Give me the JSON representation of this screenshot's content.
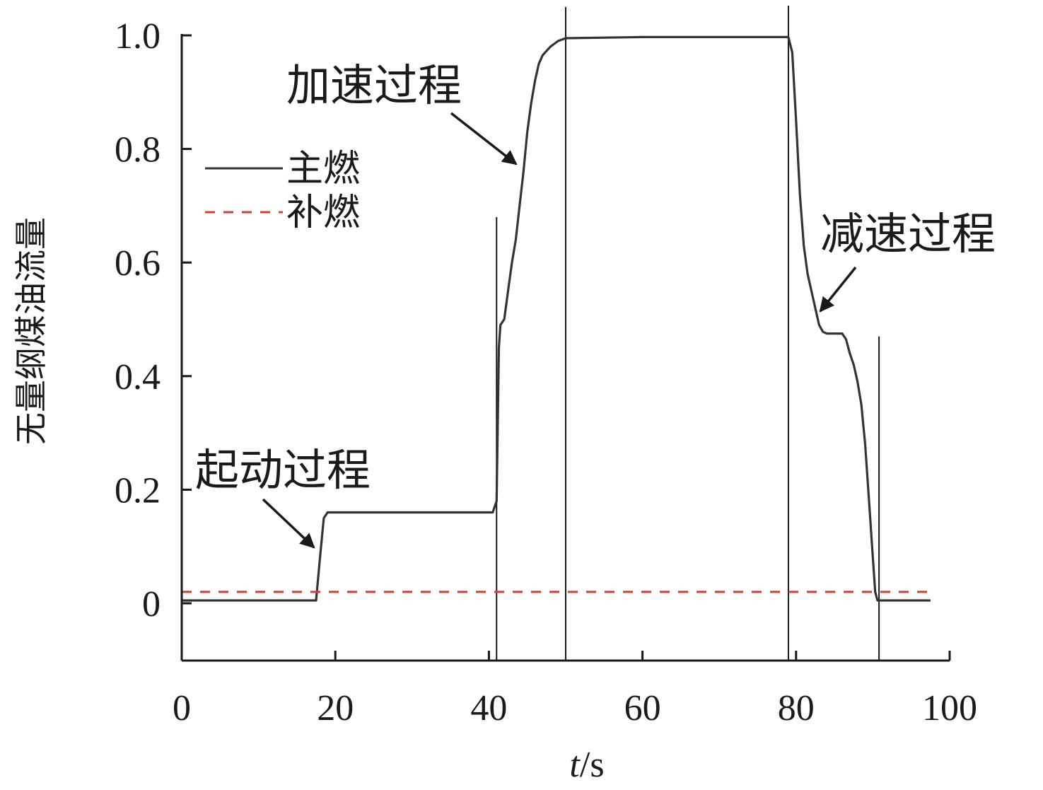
{
  "chart_data": {
    "type": "line",
    "xlabel": "t/s",
    "xlabel_var": "t",
    "xlabel_unit": "/s",
    "ylabel": "无量纲煤油流量",
    "xlim": [
      0,
      100
    ],
    "ylim": [
      -0.1,
      1.0
    ],
    "xticks": [
      "0",
      "20",
      "40",
      "60",
      "80",
      "100"
    ],
    "yticks": [
      "0",
      "0.2",
      "0.4",
      "0.6",
      "0.8",
      "1.0"
    ],
    "series": [
      {
        "name": "主燃",
        "color": "#333333",
        "style": "solid",
        "points": [
          [
            0,
            0.005
          ],
          [
            17.5,
            0.005
          ],
          [
            18.0,
            0.08
          ],
          [
            18.5,
            0.15
          ],
          [
            19.0,
            0.16
          ],
          [
            30,
            0.16
          ],
          [
            40.5,
            0.16
          ],
          [
            41.0,
            0.18
          ],
          [
            41.3,
            0.45
          ],
          [
            41.5,
            0.49
          ],
          [
            42.0,
            0.5
          ],
          [
            42.5,
            0.55
          ],
          [
            43.0,
            0.6
          ],
          [
            43.5,
            0.64
          ],
          [
            44.0,
            0.7
          ],
          [
            44.5,
            0.76
          ],
          [
            45.0,
            0.83
          ],
          [
            45.5,
            0.88
          ],
          [
            46.0,
            0.92
          ],
          [
            46.5,
            0.95
          ],
          [
            47.0,
            0.965
          ],
          [
            48.0,
            0.98
          ],
          [
            49.0,
            0.99
          ],
          [
            50.0,
            0.995
          ],
          [
            60,
            0.997
          ],
          [
            70,
            0.997
          ],
          [
            79.0,
            0.997
          ],
          [
            79.5,
            0.97
          ],
          [
            80.0,
            0.85
          ],
          [
            80.5,
            0.72
          ],
          [
            81.0,
            0.63
          ],
          [
            81.5,
            0.58
          ],
          [
            82.0,
            0.55
          ],
          [
            82.5,
            0.52
          ],
          [
            83.0,
            0.49
          ],
          [
            83.5,
            0.478
          ],
          [
            84.0,
            0.475
          ],
          [
            86.0,
            0.475
          ],
          [
            86.5,
            0.465
          ],
          [
            87.0,
            0.44
          ],
          [
            87.5,
            0.42
          ],
          [
            88.0,
            0.39
          ],
          [
            88.5,
            0.35
          ],
          [
            89.0,
            0.28
          ],
          [
            89.5,
            0.18
          ],
          [
            90.0,
            0.08
          ],
          [
            90.3,
            0.02
          ],
          [
            90.6,
            0.005
          ],
          [
            97.5,
            0.005
          ]
        ]
      },
      {
        "name": "补燃",
        "color": "#d43f33",
        "style": "dashed",
        "points": [
          [
            0,
            0.02
          ],
          [
            98,
            0.02
          ]
        ]
      }
    ],
    "vlines": [
      {
        "x": 41.0,
        "ymin": -0.1,
        "ymax": 0.68
      },
      {
        "x": 50.0,
        "ymin": -0.1,
        "ymax": 1.05
      },
      {
        "x": 79.0,
        "ymin": -0.1,
        "ymax": 1.06
      },
      {
        "x": 90.8,
        "ymin": -0.1,
        "ymax": 0.47
      }
    ],
    "legend": {
      "position": "upper-left"
    },
    "annotations": [
      {
        "text": "起动过程",
        "target": [
          17.8,
          0.1
        ]
      },
      {
        "text": "加速过程",
        "target": [
          44.2,
          0.77
        ]
      },
      {
        "text": "减速过程",
        "target": [
          82.5,
          0.51
        ]
      }
    ]
  }
}
